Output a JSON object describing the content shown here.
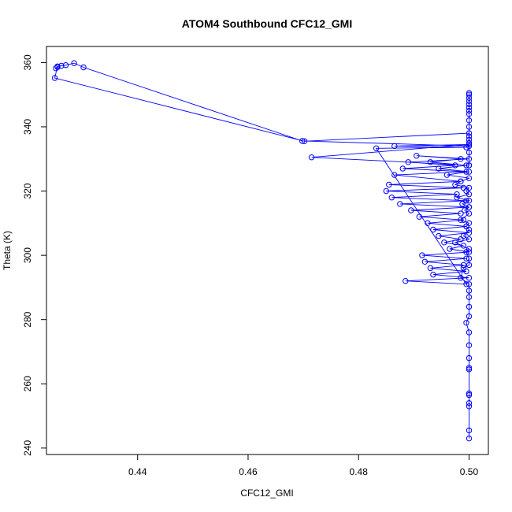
{
  "chart_data": {
    "type": "scatter",
    "title": "ATOM4 Southbound CFC12_GMI",
    "xlabel": "CFC12_GMI",
    "ylabel": "Theta (K)",
    "xlim": [
      0.4235,
      0.5035
    ],
    "ylim": [
      238,
      365
    ],
    "xticks": [
      0.44,
      0.46,
      0.48,
      0.5
    ],
    "xtick_labels": [
      "0.44",
      "0.46",
      "0.48",
      "0.50"
    ],
    "yticks": [
      240,
      260,
      280,
      300,
      320,
      340,
      360
    ],
    "ytick_labels": [
      "240",
      "260",
      "280",
      "300",
      "320",
      "340",
      "360"
    ],
    "grid": false,
    "legend": "none",
    "style": "points connected by lines",
    "color": "#0000ff",
    "series": [
      {
        "x": [
          0.5,
          0.5,
          0.5,
          0.5,
          0.5,
          0.5,
          0.5,
          0.5,
          0.5,
          0.5,
          0.5,
          0.4995,
          0.5,
          0.5,
          0.5,
          0.5,
          0.5,
          0.4985,
          0.499,
          0.5,
          0.5,
          0.4995,
          0.5,
          0.4975,
          0.5,
          0.499,
          0.5,
          0.4995,
          0.5,
          0.4985,
          0.5,
          0.4992,
          0.5,
          0.4988,
          0.5,
          0.4978,
          0.5,
          0.4995,
          0.5,
          0.4975,
          0.4985,
          0.5,
          0.496,
          0.5,
          0.4945,
          0.4995,
          0.493,
          0.4985,
          0.4905,
          0.5,
          0.489,
          0.4975,
          0.488,
          0.4995,
          0.4865,
          0.4985,
          0.4855,
          0.499,
          0.485,
          0.4978,
          0.486,
          0.4995,
          0.4875,
          0.5,
          0.4895,
          0.4985,
          0.491,
          0.499,
          0.4925,
          0.4995,
          0.4935,
          0.5,
          0.4945,
          0.4985,
          0.4955,
          0.499,
          0.4965,
          0.5,
          0.4915,
          0.4995,
          0.492,
          0.499,
          0.493,
          0.4995,
          0.4935,
          0.5,
          0.4885,
          0.4995,
          0.4832,
          0.4995,
          0.4865,
          0.5,
          0.4715,
          0.5,
          0.5,
          0.4698,
          0.4302,
          0.4285,
          0.427,
          0.4262,
          0.4255,
          0.4252,
          0.4255,
          0.425,
          0.4702,
          0.5,
          0.5,
          0.5,
          0.5,
          0.5,
          0.5,
          0.5,
          0.5,
          0.5,
          0.5,
          0.5,
          0.5,
          0.5,
          0.5,
          0.5,
          0.5
        ],
        "y": [
          243,
          245.5,
          253,
          254,
          256.5,
          257,
          264.5,
          265,
          268,
          272,
          276,
          279,
          281,
          284,
          287,
          289,
          291,
          293,
          296,
          297,
          299,
          301,
          302,
          304,
          305,
          306,
          308,
          309,
          310,
          311,
          313,
          314,
          315,
          316,
          317,
          318,
          319,
          320,
          321,
          322,
          323,
          324,
          325,
          326,
          327,
          328,
          329,
          330,
          331,
          330,
          329,
          328,
          327,
          326,
          325,
          323,
          322,
          321,
          320,
          319,
          318,
          317,
          316,
          315,
          314,
          313,
          312,
          311,
          310,
          309,
          308,
          307,
          306,
          305,
          304,
          303,
          302,
          301,
          300,
          299,
          298,
          297,
          296,
          295,
          294,
          293,
          292,
          291,
          333.3,
          333.6,
          334,
          334.5,
          330.5,
          328,
          334,
          335.6,
          358.5,
          359.8,
          359.2,
          359,
          358.6,
          358.2,
          358.8,
          355.2,
          335.5,
          338,
          340,
          342,
          344,
          345,
          346,
          347,
          348,
          349,
          350,
          350.5,
          337,
          336,
          335,
          332,
          328
        ]
      }
    ]
  }
}
